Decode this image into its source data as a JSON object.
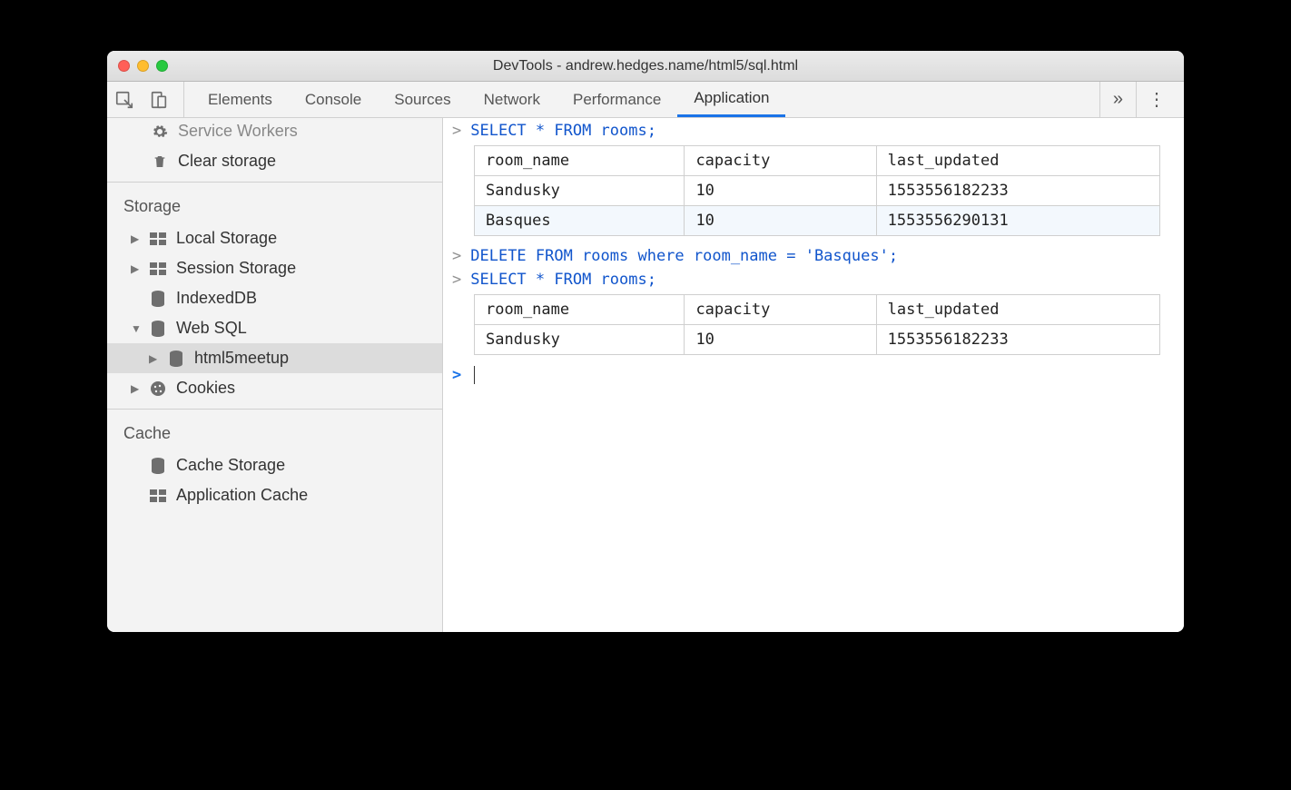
{
  "window": {
    "title": "DevTools - andrew.hedges.name/html5/sql.html"
  },
  "toolbar": {
    "tabs": [
      "Elements",
      "Console",
      "Sources",
      "Network",
      "Performance",
      "Application"
    ],
    "active_tab": "Application",
    "overflow": "»",
    "menu": "⋮"
  },
  "sidebar": {
    "top_items": [
      {
        "label": "Service Workers",
        "icon": "gear"
      },
      {
        "label": "Clear storage",
        "icon": "trash"
      }
    ],
    "storage": {
      "title": "Storage",
      "items": [
        {
          "label": "Local Storage",
          "icon": "grid",
          "arrow": "right"
        },
        {
          "label": "Session Storage",
          "icon": "grid",
          "arrow": "right"
        },
        {
          "label": "IndexedDB",
          "icon": "db",
          "arrow": "none"
        },
        {
          "label": "Web SQL",
          "icon": "db",
          "arrow": "down",
          "children": [
            {
              "label": "html5meetup",
              "icon": "db",
              "arrow": "right",
              "selected": true
            }
          ]
        },
        {
          "label": "Cookies",
          "icon": "cookie",
          "arrow": "right"
        }
      ]
    },
    "cache": {
      "title": "Cache",
      "items": [
        {
          "label": "Cache Storage",
          "icon": "db"
        },
        {
          "label": "Application Cache",
          "icon": "grid"
        }
      ]
    }
  },
  "console": {
    "queries": [
      {
        "sql": "SELECT * FROM rooms;",
        "columns": [
          "room_name",
          "capacity",
          "last_updated"
        ],
        "rows": [
          [
            "Sandusky",
            "10",
            "1553556182233"
          ],
          [
            "Basques",
            "10",
            "1553556290131"
          ]
        ]
      },
      {
        "sql": "DELETE FROM rooms where room_name = 'Basques';",
        "columns": [],
        "rows": []
      },
      {
        "sql": "SELECT * FROM rooms;",
        "columns": [
          "room_name",
          "capacity",
          "last_updated"
        ],
        "rows": [
          [
            "Sandusky",
            "10",
            "1553556182233"
          ]
        ]
      }
    ]
  },
  "colors": {
    "background": "#000000",
    "window_bg": "#ffffff",
    "toolbar_bg": "#f3f3f3",
    "sidebar_bg": "#f3f3f3",
    "selected_bg": "#dcdcdc",
    "active_tab_border": "#1a73e8",
    "sql_color": "#1155cc",
    "border": "#d0d0d0",
    "table_border": "#cfcfcf",
    "alt_row": "#f3f8fd"
  }
}
